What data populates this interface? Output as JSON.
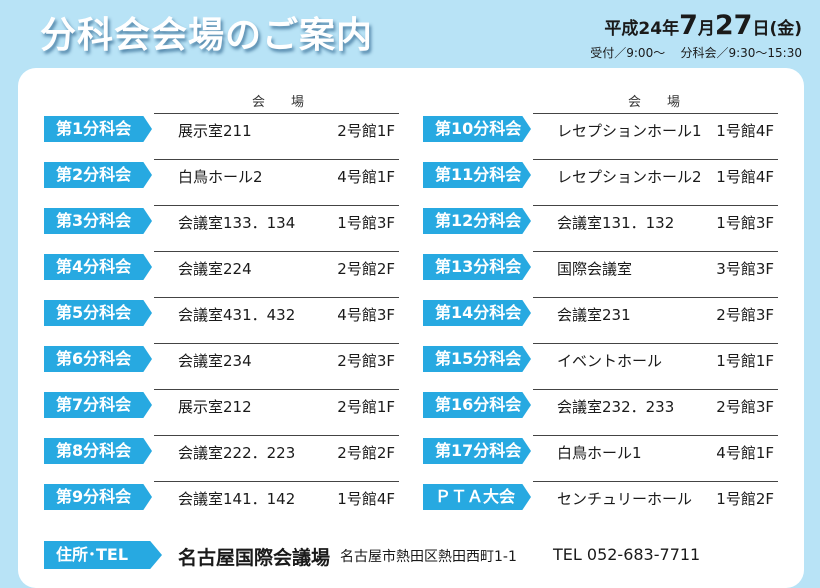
{
  "header": {
    "title": "分科会会場のご案内",
    "date_era": "平成24年",
    "date_month": "7",
    "date_month_unit": "月",
    "date_day": "27",
    "date_day_unit": "日",
    "date_weekday": "(金)",
    "reception": "受付／9:00〜",
    "session": "分科会／9:30〜15:30"
  },
  "venue_header": "会場",
  "left_sessions": [
    {
      "name": "第1分科会",
      "room": "展示室211",
      "building": "2号館1F"
    },
    {
      "name": "第2分科会",
      "room": "白鳥ホール2",
      "building": "4号館1F"
    },
    {
      "name": "第3分科会",
      "room": "会議室133．134",
      "building": "1号館3F"
    },
    {
      "name": "第4分科会",
      "room": "会議室224",
      "building": "2号館2F"
    },
    {
      "name": "第5分科会",
      "room": "会議室431．432",
      "building": "4号館3F"
    },
    {
      "name": "第6分科会",
      "room": "会議室234",
      "building": "2号館3F"
    },
    {
      "name": "第7分科会",
      "room": "展示室212",
      "building": "2号館1F"
    },
    {
      "name": "第8分科会",
      "room": "会議室222．223",
      "building": "2号館2F"
    },
    {
      "name": "第9分科会",
      "room": "会議室141．142",
      "building": "1号館4F"
    }
  ],
  "right_sessions": [
    {
      "name": "第10分科会",
      "room": "レセプションホール1",
      "building": "1号館4F"
    },
    {
      "name": "第11分科会",
      "room": "レセプションホール2",
      "building": "1号館4F"
    },
    {
      "name": "第12分科会",
      "room": "会議室131．132",
      "building": "1号館3F"
    },
    {
      "name": "第13分科会",
      "room": "国際会議室",
      "building": "3号館3F"
    },
    {
      "name": "第14分科会",
      "room": "会議室231",
      "building": "2号館3F"
    },
    {
      "name": "第15分科会",
      "room": "イベントホール",
      "building": "1号館1F"
    },
    {
      "name": "第16分科会",
      "room": "会議室232．233",
      "building": "2号館3F"
    },
    {
      "name": "第17分科会",
      "room": "白鳥ホール1",
      "building": "4号館1F"
    },
    {
      "name": "ＰＴＡ大会",
      "room": "センチュリーホール",
      "building": "1号館2F"
    }
  ],
  "footer": {
    "label": "住所･TEL",
    "venue": "名古屋国際会議場",
    "address": "名古屋市熱田区熱田西町1-1",
    "tel": "TEL 052-683-7711"
  },
  "colors": {
    "accent": "#27a9e1",
    "background": "#b8e3f6"
  }
}
